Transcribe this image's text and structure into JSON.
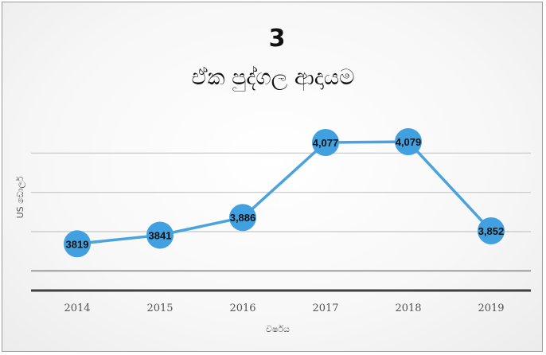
{
  "chart_data": {
    "type": "line",
    "number_label": "3",
    "title": "ඒක පුද්ගල ආදායම",
    "xlabel": "වර්ෂය",
    "ylabel": "US ඩොලර්",
    "categories": [
      "2014",
      "2015",
      "2016",
      "2017",
      "2018",
      "2019"
    ],
    "series": [
      {
        "values": [
          3819,
          3841,
          3886,
          4077,
          4079,
          3852
        ],
        "data_labels": [
          "3819",
          "3841",
          "3,886",
          "4,077",
          "4,079",
          "3,852"
        ]
      }
    ],
    "ylim": [
      3700,
      4150
    ],
    "gridlines": [
      3750,
      3850,
      3950,
      4050
    ],
    "grid": true,
    "legend": "none",
    "colors": {
      "line": "#4aa3df",
      "marker": "#41a1e0"
    }
  }
}
